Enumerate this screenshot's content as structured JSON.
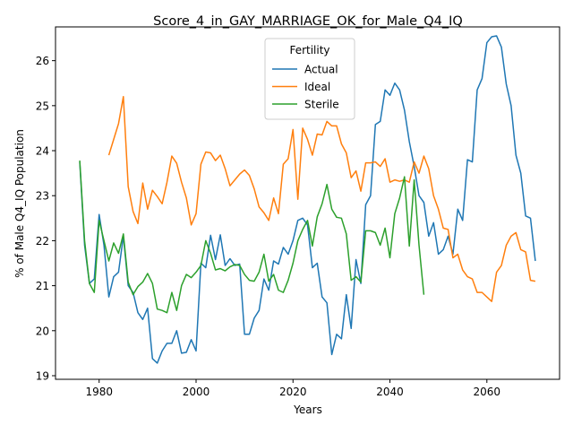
{
  "chart_data": {
    "type": "line",
    "title": "Score_4_in_GAY_MARRIAGE_OK_for_Male_Q4_IQ",
    "xlabel": "Years",
    "ylabel": "% of Male Q4_IQ Population",
    "xlim": [
      1971,
      2075
    ],
    "ylim": [
      18.92,
      26.75
    ],
    "xticks": [
      1980,
      2000,
      2020,
      2040,
      2060
    ],
    "yticks": [
      19,
      20,
      21,
      22,
      23,
      24,
      25,
      26
    ],
    "grid": false,
    "legend": {
      "title": "Fertility",
      "position": "upper center"
    },
    "series": [
      {
        "name": "Actual",
        "color": "#1f77b4",
        "x": [
          1976,
          1977,
          1978,
          1979,
          1980,
          1981,
          1982,
          1983,
          1984,
          1985,
          1986,
          1987,
          1988,
          1989,
          1990,
          1991,
          1992,
          1993,
          1994,
          1995,
          1996,
          1997,
          1998,
          1999,
          2000,
          2001,
          2002,
          2003,
          2004,
          2005,
          2006,
          2007,
          2008,
          2009,
          2010,
          2011,
          2012,
          2013,
          2014,
          2015,
          2016,
          2017,
          2018,
          2019,
          2020,
          2021,
          2022,
          2023,
          2024,
          2025,
          2026,
          2027,
          2028,
          2029,
          2030,
          2031,
          2032,
          2033,
          2034,
          2035,
          2036,
          2037,
          2038,
          2039,
          2040,
          2041,
          2042,
          2043,
          2044,
          2045,
          2046,
          2047,
          2048,
          2049,
          2050,
          2051,
          2052,
          2053,
          2054,
          2055,
          2056,
          2057,
          2058,
          2059,
          2060,
          2061,
          2062,
          2063,
          2064,
          2065,
          2066,
          2067,
          2068,
          2069,
          2070
        ],
        "values": [
          23.75,
          21.9,
          21.05,
          21.15,
          22.58,
          21.9,
          20.75,
          21.2,
          21.3,
          22.1,
          21.0,
          20.85,
          20.4,
          20.25,
          20.5,
          19.38,
          19.28,
          19.55,
          19.72,
          19.72,
          20.0,
          19.5,
          19.52,
          19.8,
          19.55,
          21.5,
          21.4,
          22.12,
          21.58,
          22.13,
          21.45,
          21.6,
          21.45,
          21.48,
          19.92,
          19.92,
          20.28,
          20.45,
          21.15,
          20.9,
          21.55,
          21.48,
          21.85,
          21.7,
          22.0,
          22.45,
          22.5,
          22.35,
          21.4,
          21.5,
          20.75,
          20.62,
          19.47,
          19.92,
          19.82,
          20.8,
          20.05,
          21.58,
          21.05,
          22.8,
          23.0,
          24.58,
          24.65,
          25.35,
          25.23,
          25.5,
          25.35,
          24.9,
          24.2,
          23.65,
          23.0,
          22.85,
          22.1,
          22.4,
          21.7,
          21.8,
          22.1,
          21.7,
          22.7,
          22.45,
          23.8,
          23.75,
          25.35,
          25.6,
          26.4,
          26.53,
          26.55,
          26.3,
          25.48,
          25.0,
          23.9,
          23.5,
          22.55,
          22.5,
          21.55
        ]
      },
      {
        "name": "Ideal",
        "color": "#ff7f0e",
        "x": [
          1982,
          1983,
          1984,
          1985,
          1986,
          1987,
          1988,
          1989,
          1990,
          1991,
          1992,
          1993,
          1994,
          1995,
          1996,
          1997,
          1998,
          1999,
          2000,
          2001,
          2002,
          2003,
          2004,
          2005,
          2006,
          2007,
          2008,
          2009,
          2010,
          2011,
          2012,
          2013,
          2014,
          2015,
          2016,
          2017,
          2018,
          2019,
          2020,
          2021,
          2022,
          2023,
          2024,
          2025,
          2026,
          2027,
          2028,
          2029,
          2030,
          2031,
          2032,
          2033,
          2034,
          2035,
          2036,
          2037,
          2038,
          2039,
          2040,
          2041,
          2042,
          2043,
          2044,
          2045,
          2046,
          2047,
          2048,
          2049,
          2050,
          2051,
          2052,
          2053,
          2054,
          2055,
          2056,
          2057,
          2058,
          2059,
          2060,
          2061,
          2062,
          2063,
          2064,
          2065,
          2066,
          2067,
          2068,
          2069,
          2070
        ],
        "values": [
          23.9,
          24.25,
          24.6,
          25.2,
          23.2,
          22.65,
          22.38,
          23.28,
          22.7,
          23.12,
          22.98,
          22.82,
          23.3,
          23.88,
          23.72,
          23.3,
          22.95,
          22.35,
          22.6,
          23.7,
          23.97,
          23.95,
          23.78,
          23.9,
          23.6,
          23.22,
          23.35,
          23.48,
          23.57,
          23.45,
          23.15,
          22.75,
          22.62,
          22.45,
          22.95,
          22.6,
          23.7,
          23.82,
          24.47,
          22.92,
          24.5,
          24.25,
          23.9,
          24.37,
          24.35,
          24.65,
          24.55,
          24.55,
          24.15,
          23.95,
          23.4,
          23.55,
          23.1,
          23.73,
          23.73,
          23.75,
          23.65,
          23.82,
          23.3,
          23.35,
          23.32,
          23.35,
          23.3,
          23.75,
          23.5,
          23.88,
          23.6,
          23.0,
          22.7,
          22.28,
          22.25,
          21.62,
          21.7,
          21.35,
          21.2,
          21.15,
          20.85,
          20.85,
          20.75,
          20.65,
          21.3,
          21.45,
          21.9,
          22.1,
          22.18,
          21.8,
          21.75,
          21.12,
          21.1
        ]
      },
      {
        "name": "Sterile",
        "color": "#2ca02c",
        "x": [
          1976,
          1977,
          1978,
          1979,
          1980,
          1981,
          1982,
          1983,
          1984,
          1985,
          1986,
          1987,
          1988,
          1989,
          1990,
          1991,
          1992,
          1993,
          1994,
          1995,
          1996,
          1997,
          1998,
          1999,
          2000,
          2001,
          2002,
          2003,
          2004,
          2005,
          2006,
          2007,
          2008,
          2009,
          2010,
          2011,
          2012,
          2013,
          2014,
          2015,
          2016,
          2017,
          2018,
          2019,
          2020,
          2021,
          2022,
          2023,
          2024,
          2025,
          2026,
          2027,
          2028,
          2029,
          2030,
          2031,
          2032,
          2033,
          2034,
          2035,
          2036,
          2037,
          2038,
          2039,
          2040,
          2041,
          2042,
          2043,
          2044,
          2045,
          2046,
          2047
        ],
        "values": [
          23.78,
          22.0,
          21.05,
          20.85,
          22.45,
          22.0,
          21.55,
          21.95,
          21.72,
          22.15,
          21.08,
          20.8,
          20.98,
          21.08,
          21.27,
          21.05,
          20.48,
          20.45,
          20.4,
          20.85,
          20.45,
          21.0,
          21.25,
          21.18,
          21.3,
          21.45,
          22.0,
          21.72,
          21.35,
          21.38,
          21.33,
          21.42,
          21.47,
          21.45,
          21.25,
          21.12,
          21.1,
          21.3,
          21.7,
          21.1,
          21.25,
          20.9,
          20.85,
          21.12,
          21.5,
          22.0,
          22.25,
          22.45,
          21.88,
          22.53,
          22.82,
          23.25,
          22.7,
          22.52,
          22.5,
          22.15,
          21.12,
          21.2,
          21.08,
          22.22,
          22.22,
          22.18,
          21.9,
          22.28,
          21.62,
          22.6,
          22.95,
          23.42,
          21.88,
          23.35,
          21.9,
          20.8
        ]
      }
    ]
  }
}
